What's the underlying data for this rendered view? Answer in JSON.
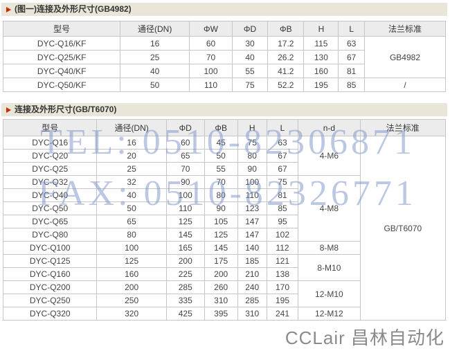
{
  "colors": {
    "section_bar_bg": "#e9e5d9",
    "arrow_accent": "#cc2a00",
    "table_border": "#c6c6c6",
    "header_row_bg": "#ececec",
    "watermark_blue": "#7a92c7",
    "watermark_gray": "#7d7d7d"
  },
  "sections": [
    {
      "title": "(图一)连接及外形尺寸(GB4982)",
      "table": {
        "headers": [
          "型号",
          "通径(DN)",
          "ΦW",
          "ΦD",
          "ΦB",
          "H",
          "L",
          "法兰标准"
        ],
        "rows": [
          [
            "DYC-Q16/KF",
            "16",
            "60",
            "30",
            "17.2",
            "115",
            "63"
          ],
          [
            "DYC-Q25/KF",
            "25",
            "70",
            "40",
            "26.2",
            "130",
            "67"
          ],
          [
            "DYC-Q40/KF",
            "40",
            "100",
            "55",
            "41.2",
            "160",
            "81"
          ],
          [
            "DYC-Q50/KF",
            "50",
            "110",
            "75",
            "52.2",
            "195",
            "85"
          ]
        ],
        "merge_columns": [
          [
            {
              "label": "GB4982",
              "rowspan": 3
            },
            {
              "label": "/",
              "rowspan": 1
            }
          ]
        ]
      }
    },
    {
      "title": "连接及外形尺寸(GB/T6070)",
      "table": {
        "headers": [
          "型号",
          "通径(DN)",
          "ΦD",
          "ΦB",
          "H",
          "L",
          "n-d",
          "法兰标准"
        ],
        "rows": [
          [
            "DYC-Q16",
            "16",
            "60",
            "45",
            "75",
            "63"
          ],
          [
            "DYC-Q20",
            "20",
            "65",
            "50",
            "80",
            "67"
          ],
          [
            "DYC-Q25",
            "25",
            "70",
            "55",
            "90",
            "67"
          ],
          [
            "DYC-Q32",
            "32",
            "90",
            "70",
            "100",
            "75"
          ],
          [
            "DYC-Q40",
            "40",
            "100",
            "80",
            "110",
            "81"
          ],
          [
            "DYC-Q50",
            "50",
            "110",
            "90",
            "123",
            "85"
          ],
          [
            "DYC-Q65",
            "65",
            "125",
            "105",
            "147",
            "95"
          ],
          [
            "DYC-Q80",
            "80",
            "145",
            "125",
            "147",
            "102"
          ],
          [
            "DYC-Q100",
            "100",
            "165",
            "145",
            "140",
            "112"
          ],
          [
            "DYC-Q125",
            "125",
            "200",
            "175",
            "185",
            "121"
          ],
          [
            "DYC-Q160",
            "160",
            "225",
            "200",
            "210",
            "138"
          ],
          [
            "DYC-Q200",
            "200",
            "285",
            "260",
            "240",
            "170"
          ],
          [
            "DYC-Q250",
            "250",
            "335",
            "310",
            "285",
            "195"
          ],
          [
            "DYC-Q320",
            "320",
            "425",
            "395",
            "310",
            "241"
          ]
        ],
        "merge_columns": [
          [
            {
              "label": "4-M6",
              "rowspan": 3
            },
            {
              "label": "4-M8",
              "rowspan": 5
            },
            {
              "label": "8-M8",
              "rowspan": 1
            },
            {
              "label": "8-M10",
              "rowspan": 2
            },
            {
              "label": "12-M10",
              "rowspan": 2
            },
            {
              "label": "12-M12",
              "rowspan": 1
            }
          ],
          [
            {
              "label": "GB/T6070",
              "rowspan": 14
            }
          ]
        ]
      }
    }
  ],
  "watermarks": {
    "tel": "TEL: 0510-82306871",
    "fax": "FAX: 0510-82326771",
    "brand": "CCLair 昌林自动化"
  }
}
